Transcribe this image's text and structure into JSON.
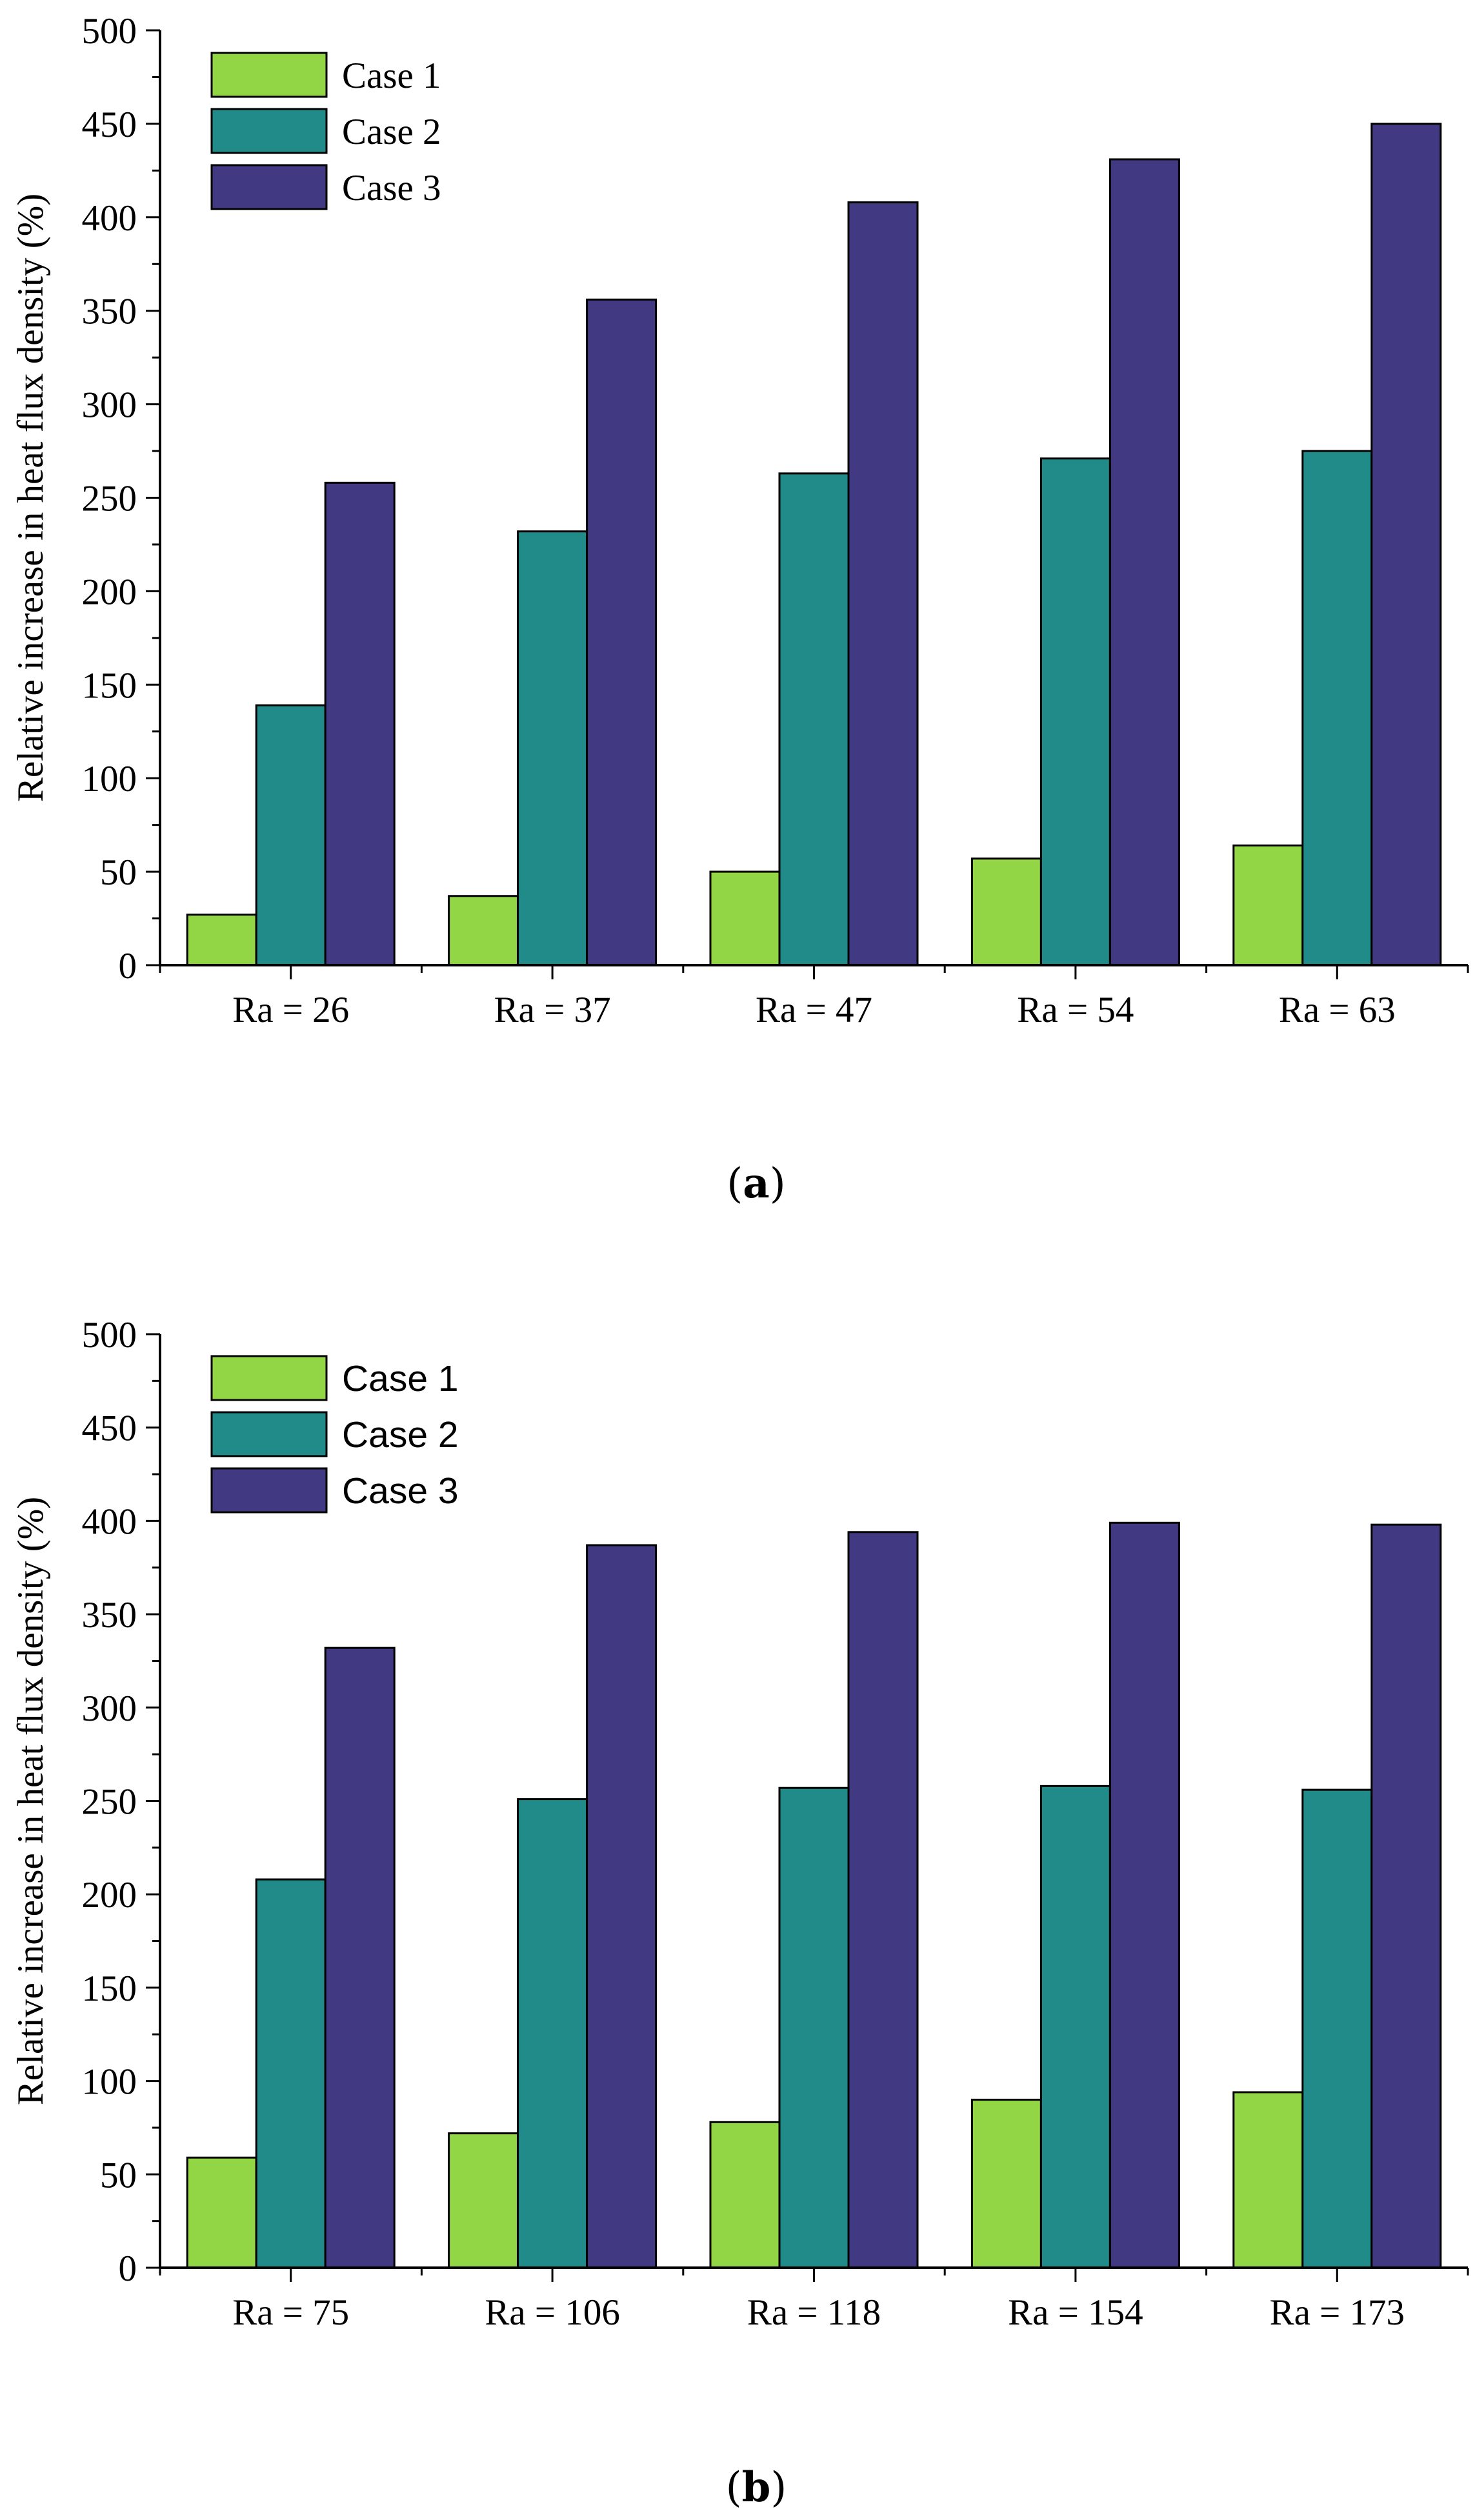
{
  "colors": {
    "case1": "#92d645",
    "case2": "#218b89",
    "case3": "#413982"
  },
  "chart_data": [
    {
      "type": "bar",
      "panel": "(a)",
      "panel_letter": "a",
      "categories": [
        "Ra = 26",
        "Ra = 37",
        "Ra = 47",
        "Ra = 54",
        "Ra = 63"
      ],
      "series": [
        {
          "name": "Case 1",
          "values": [
            27,
            37,
            50,
            57,
            64
          ]
        },
        {
          "name": "Case 2",
          "values": [
            139,
            232,
            263,
            271,
            275
          ]
        },
        {
          "name": "Case 3",
          "values": [
            258,
            356,
            408,
            431,
            450
          ]
        }
      ],
      "ylabel": "Relative increase in heat flux density (%)",
      "xlabel": "",
      "ylim": [
        0,
        500
      ],
      "yticks": [
        "0",
        "50",
        "100",
        "150",
        "200",
        "250",
        "300",
        "350",
        "400",
        "450",
        "500"
      ],
      "legend": "top-left"
    },
    {
      "type": "bar",
      "panel": "(b)",
      "panel_letter": "b",
      "categories": [
        "Ra = 75",
        "Ra = 106",
        "Ra = 118",
        "Ra = 154",
        "Ra = 173"
      ],
      "series": [
        {
          "name": "Case 1",
          "values": [
            59,
            72,
            78,
            90,
            94
          ]
        },
        {
          "name": "Case 2",
          "values": [
            208,
            251,
            257,
            258,
            256
          ]
        },
        {
          "name": "Case 3",
          "values": [
            332,
            387,
            394,
            399,
            398
          ]
        }
      ],
      "ylabel": "Relative increase in heat flux density (%)",
      "xlabel": "",
      "ylim": [
        0,
        500
      ],
      "yticks": [
        "0",
        "50",
        "100",
        "150",
        "200",
        "250",
        "300",
        "350",
        "400",
        "450",
        "500"
      ],
      "legend": "top-left"
    }
  ]
}
